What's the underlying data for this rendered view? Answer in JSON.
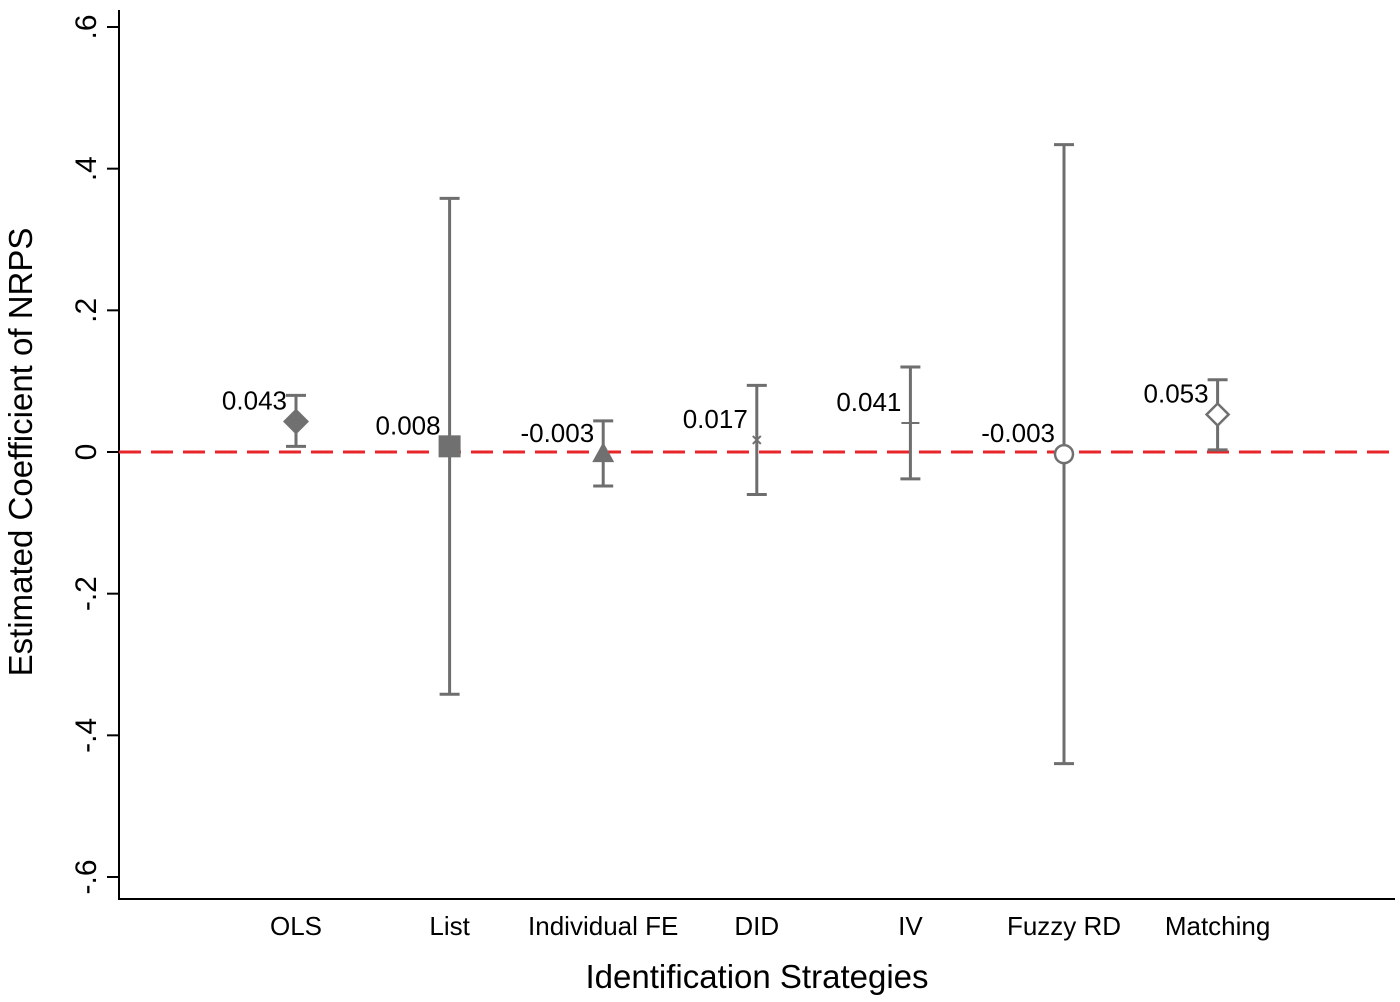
{
  "chart_data": {
    "type": "scatter",
    "title": "",
    "xlabel": "Identification Strategies",
    "ylabel": "Estimated Coefficient of NRPS",
    "ylim": [
      -0.6,
      0.6
    ],
    "yticks": [
      {
        "value": -0.6,
        "label": "-.6"
      },
      {
        "value": -0.4,
        "label": "-.4"
      },
      {
        "value": -0.2,
        "label": "-.2"
      },
      {
        "value": 0,
        "label": "0"
      },
      {
        "value": 0.2,
        "label": ".2"
      },
      {
        "value": 0.4,
        "label": ".4"
      },
      {
        "value": 0.6,
        "label": ".6"
      }
    ],
    "grid": false,
    "reference_line": {
      "y": 0,
      "color": "#e8262a",
      "style": "dashed"
    },
    "categories": [
      "OLS",
      "List",
      "Individual FE",
      "DID",
      "IV",
      "Fuzzy RD",
      "Matching"
    ],
    "points": [
      {
        "category": "OLS",
        "estimate": 0.043,
        "ci_low": 0.008,
        "ci_high": 0.08,
        "label": "0.043",
        "marker": "diamond-filled"
      },
      {
        "category": "List",
        "estimate": 0.008,
        "ci_low": -0.342,
        "ci_high": 0.358,
        "label": "0.008",
        "marker": "square-filled"
      },
      {
        "category": "Individual FE",
        "estimate": -0.003,
        "ci_low": -0.048,
        "ci_high": 0.044,
        "label": "-0.003",
        "marker": "triangle-filled"
      },
      {
        "category": "DID",
        "estimate": 0.017,
        "ci_low": -0.06,
        "ci_high": 0.094,
        "label": "0.017",
        "marker": "x"
      },
      {
        "category": "IV",
        "estimate": 0.041,
        "ci_low": -0.038,
        "ci_high": 0.12,
        "label": "0.041",
        "marker": "plus"
      },
      {
        "category": "Fuzzy RD",
        "estimate": -0.003,
        "ci_low": -0.44,
        "ci_high": 0.434,
        "label": "-0.003",
        "marker": "circle-hollow"
      },
      {
        "category": "Matching",
        "estimate": 0.053,
        "ci_low": 0.003,
        "ci_high": 0.102,
        "label": "0.053",
        "marker": "diamond-hollow"
      }
    ],
    "colors": {
      "marker": "#707070",
      "errorbar": "#6e6e6e",
      "axis": "#000000"
    }
  }
}
